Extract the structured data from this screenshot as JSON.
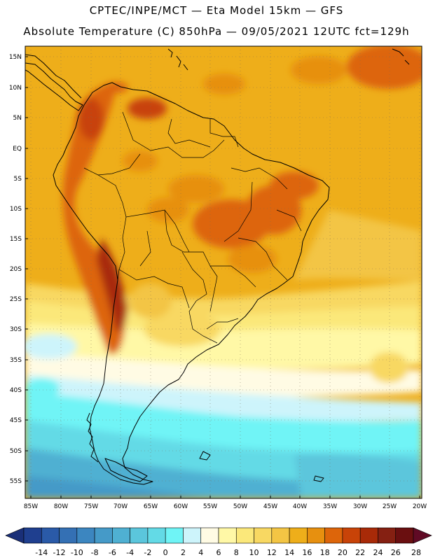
{
  "title_line1": "CPTEC/INPE/MCT —  Eta Model 15km — GFS",
  "title_line2": "Absolute Temperature (C) 850hPa — 09/05/2021 12UTC fct=129h",
  "lat_labels": [
    "15N",
    "10N",
    "5N",
    "EQ",
    "5S",
    "10S",
    "15S",
    "20S",
    "25S",
    "30S",
    "35S",
    "40S",
    "45S",
    "50S",
    "55S"
  ],
  "lon_labels": [
    "85W",
    "80W",
    "75W",
    "70W",
    "65W",
    "60W",
    "55W",
    "50W",
    "45W",
    "40W",
    "35W",
    "30W",
    "25W",
    "20W"
  ],
  "colorbar": {
    "labels": [
      "-14",
      "-12",
      "-10",
      "-8",
      "-6",
      "-4",
      "-2",
      "0",
      "2",
      "4",
      "6",
      "8",
      "10",
      "12",
      "14",
      "16",
      "18",
      "20",
      "22",
      "24",
      "26",
      "28"
    ],
    "colors": [
      "#1f3f8f",
      "#2a5aa8",
      "#3470b4",
      "#3c86c0",
      "#459ac8",
      "#4fb0d2",
      "#5bc6dc",
      "#63dae6",
      "#6ff4f6",
      "#cdf4fb",
      "#fffbe4",
      "#fff8a6",
      "#fbe87a",
      "#f8d862",
      "#f3c544",
      "#eeae1a",
      "#e7900f",
      "#dd650a",
      "#c84308",
      "#a82a08",
      "#852012",
      "#6a0f10"
    ],
    "under_color": "#1a2f78",
    "over_color": "#600a25"
  }
}
